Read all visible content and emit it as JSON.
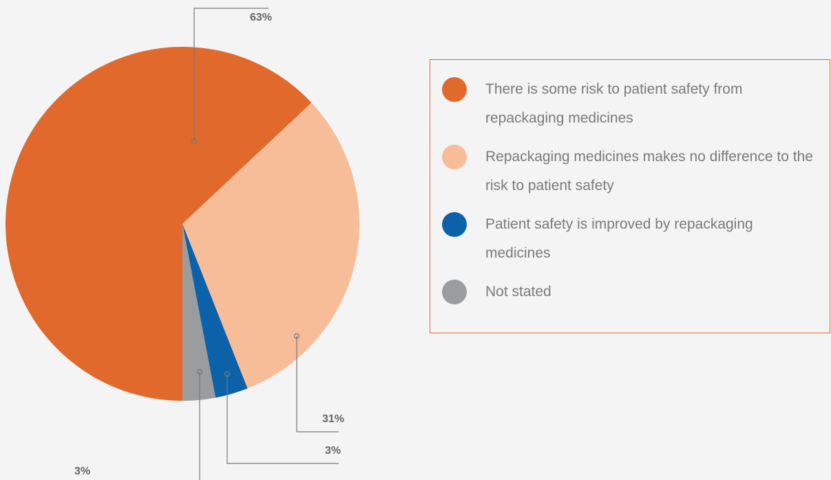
{
  "chart_data": {
    "type": "pie",
    "categories": [
      "There is some risk to patient safety from repackaging medicines",
      "Repackaging medicines makes no difference to the risk to patient safety",
      "Patient safety is improved by repackaging medicines",
      "Not stated"
    ],
    "values": [
      63,
      31,
      3,
      3
    ],
    "value_labels": [
      "63%",
      "31%",
      "3%",
      "3%"
    ],
    "colors": [
      "#e1692b",
      "#f7bd99",
      "#0c62a8",
      "#9b9c9e"
    ]
  }
}
